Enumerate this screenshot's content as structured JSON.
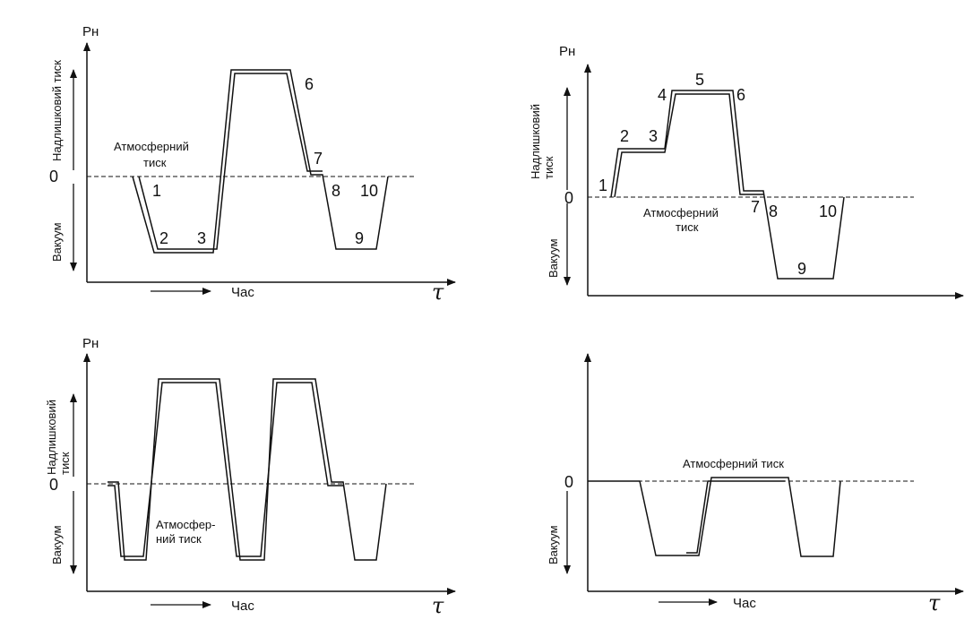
{
  "panels": [
    {
      "id": "top-left",
      "y_axis_label": "Pн",
      "positive_label": "Надлишковий тиск",
      "negative_label": "Вакуум",
      "zero_label": "0",
      "reference_label": "Атмосферний тиск",
      "time_label": "Час",
      "tau_label": "τ",
      "points": [
        "1",
        "2",
        "3",
        "6",
        "7",
        "8",
        "9",
        "10"
      ]
    },
    {
      "id": "top-right",
      "y_axis_label": "Pн",
      "positive_label": "Надлишковий тиск",
      "negative_label": "Вакуум",
      "zero_label": "0",
      "reference_label": "Атмосферний тиск",
      "points": [
        "1",
        "2",
        "3",
        "4",
        "5",
        "6",
        "7",
        "8",
        "9",
        "10"
      ]
    },
    {
      "id": "bottom-left",
      "y_axis_label": "Pн",
      "positive_label": "Надлишковий тиск",
      "negative_label": "Вакуум",
      "zero_label": "0",
      "reference_label": "Атмосфер-ний тиск",
      "time_label": "Час",
      "tau_label": "τ"
    },
    {
      "id": "bottom-right",
      "negative_label": "Вакуум",
      "zero_label": "0",
      "reference_label": "Атмосферний тиск",
      "time_label": "Час",
      "tau_label": "τ"
    }
  ],
  "colors": {
    "line": "#111111",
    "background": "#ffffff"
  }
}
